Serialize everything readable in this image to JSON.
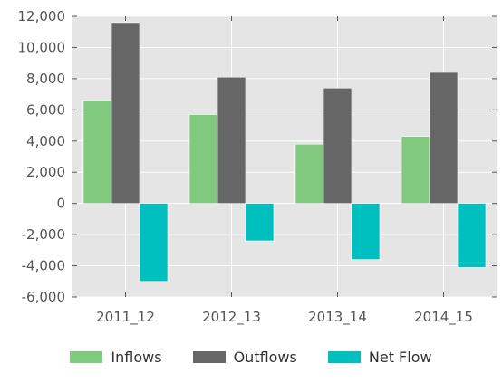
{
  "chart_data": {
    "type": "bar",
    "categories": [
      "2011_12",
      "2012_13",
      "2013_14",
      "2014_15"
    ],
    "series": [
      {
        "name": "Inflows",
        "values": [
          6600,
          5700,
          3800,
          4300
        ],
        "color": "#80c97e"
      },
      {
        "name": "Outflows",
        "values": [
          11600,
          8100,
          7400,
          8400
        ],
        "color": "#666666"
      },
      {
        "name": "Net Flow",
        "values": [
          -5000,
          -2400,
          -3600,
          -4100
        ],
        "color": "#00bfbf"
      }
    ],
    "title": "",
    "xlabel": "",
    "ylabel": "",
    "ylim": [
      -6000,
      12000
    ],
    "yticks": [
      -6000,
      -4000,
      -2000,
      0,
      2000,
      4000,
      6000,
      8000,
      10000,
      12000
    ],
    "ytick_labels": [
      "-6,000",
      "-4,000",
      "-2,000",
      "0",
      "2,000",
      "4,000",
      "6,000",
      "8,000",
      "10,000",
      "12,000"
    ],
    "grid": true,
    "background": "#e5e5e5",
    "legend_position": "bottom-center"
  }
}
